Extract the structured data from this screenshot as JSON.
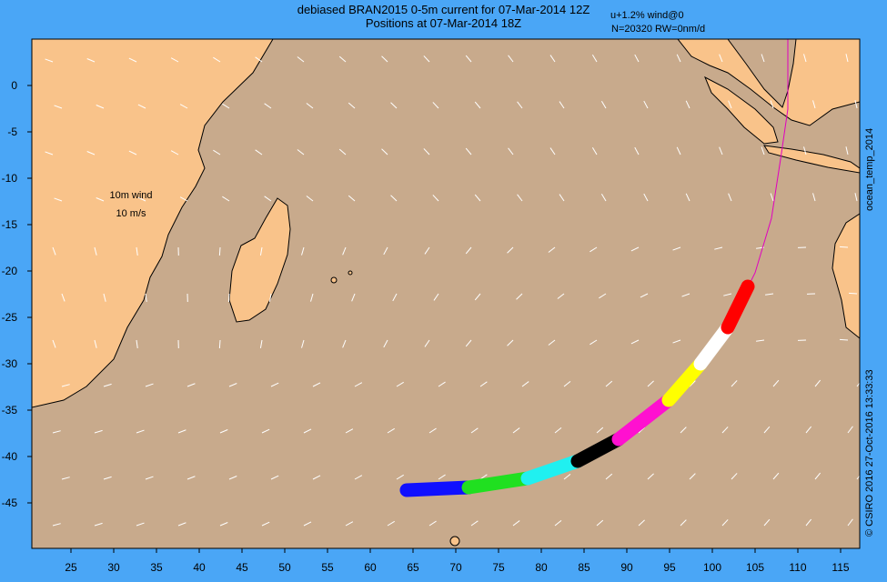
{
  "header": {
    "title_line1": "debiased BRAN2015 0-5m current for 07-Mar-2014 12Z",
    "title_line2": "Positions at 07-Mar-2014 18Z",
    "note_line1": "u+1.2% wind@0",
    "note_line2": "N=20320 RW=0nm/d"
  },
  "side_labels": {
    "product": "ocean_temp_2014",
    "credit": "© CSIRO 2016   27-Oct-2016 13:33:33"
  },
  "wind_legend": {
    "label": "10m wind",
    "scale": "10 m/s"
  },
  "map": {
    "lon_ticks": [
      "25",
      "30",
      "35",
      "40",
      "45",
      "50",
      "55",
      "60",
      "65",
      "70",
      "75",
      "80",
      "85",
      "90",
      "95",
      "100",
      "105",
      "110",
      "115"
    ],
    "lat_ticks": [
      "0",
      "-5",
      "-10",
      "-15",
      "-20",
      "-25",
      "-30",
      "-35",
      "-40",
      "-45"
    ],
    "colors": {
      "ocean": "#c8aa8c",
      "land": "#f9c38a",
      "background": "#4aa6f6",
      "track": "#e000c0"
    },
    "particle_bands": [
      {
        "color": "#1010ff"
      },
      {
        "color": "#20e020"
      },
      {
        "color": "#20f0f0"
      },
      {
        "color": "#000000"
      },
      {
        "color": "#ff10d0"
      },
      {
        "color": "#ffff00"
      },
      {
        "color": "#ffffff"
      },
      {
        "color": "#ff0000"
      }
    ]
  }
}
